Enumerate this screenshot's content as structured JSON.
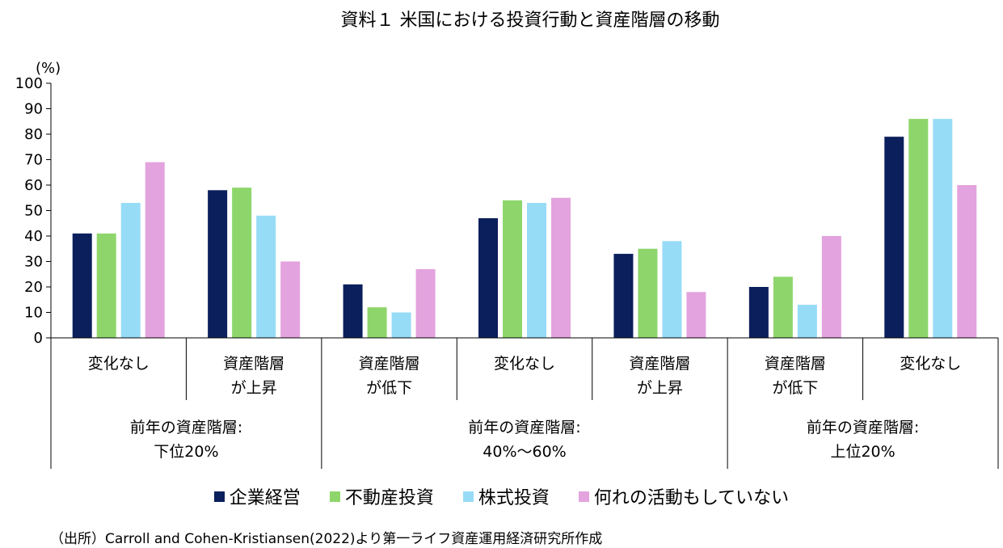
{
  "chart_data": {
    "type": "bar",
    "title": "資料１ 米国における投資行動と資産階層の移動",
    "ylabel": "(%)",
    "ylim": [
      0,
      100
    ],
    "yticks": [
      0,
      10,
      20,
      30,
      40,
      50,
      60,
      70,
      80,
      90,
      100
    ],
    "groups": [
      {
        "label": [
          "前年の資産階層:",
          "下位20%"
        ],
        "categories": [
          [
            "変化なし"
          ],
          [
            "資産階層",
            "が上昇"
          ]
        ]
      },
      {
        "label": [
          "前年の資産階層:",
          "40%〜60%"
        ],
        "categories": [
          [
            "資産階層",
            "が低下"
          ],
          [
            "変化なし"
          ],
          [
            "資産階層",
            "が上昇"
          ]
        ]
      },
      {
        "label": [
          "前年の資産階層:",
          "上位20%"
        ],
        "categories": [
          [
            "資産階層",
            "が低下"
          ],
          [
            "変化なし"
          ]
        ]
      }
    ],
    "series": [
      {
        "name": "企業経営",
        "color": "#0b1f5c",
        "values": [
          41,
          58,
          21,
          47,
          33,
          20,
          79
        ]
      },
      {
        "name": "不動産投資",
        "color": "#8ed66b",
        "values": [
          41,
          59,
          12,
          54,
          35,
          24,
          86
        ]
      },
      {
        "name": "株式投資",
        "color": "#97dcf7",
        "values": [
          53,
          48,
          10,
          53,
          38,
          13,
          86
        ]
      },
      {
        "name": "何れの活動もしていない",
        "color": "#e3a3de",
        "values": [
          69,
          30,
          27,
          55,
          18,
          40,
          60
        ]
      }
    ],
    "grid": false,
    "legend_position": "bottom"
  },
  "source": "（出所）Carroll and Cohen-Kristiansen(2022)より第一ライフ資産運用経済研究所作成"
}
